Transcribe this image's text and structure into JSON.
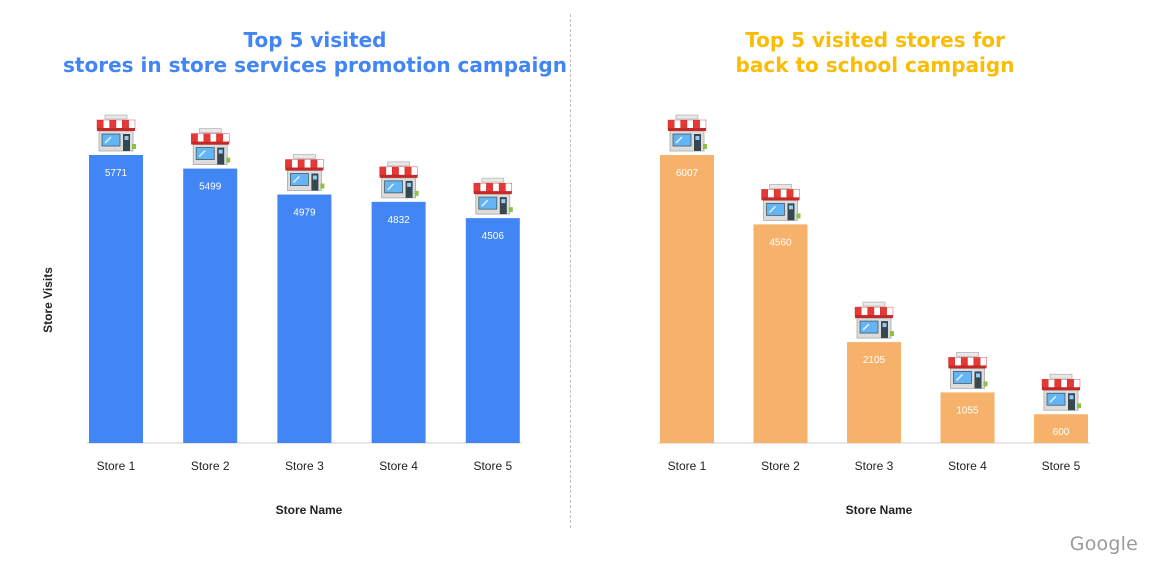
{
  "colors": {
    "left_bar": "#4285f4",
    "right_bar": "#f6b26b",
    "left_title": "#4285f4",
    "right_title": "#fbbc04"
  },
  "chart_data": [
    {
      "type": "bar",
      "title_lines": [
        "Top 5 visited",
        "stores in store services promotion campaign"
      ],
      "xlabel": "Store Name",
      "ylabel": "Store Visits",
      "categories": [
        "Store 1",
        "Store 2",
        "Store 3",
        "Store 4",
        "Store 5"
      ],
      "values": [
        5771,
        5499,
        4979,
        4832,
        4506
      ],
      "ylim": [
        0,
        6500
      ],
      "icon": "store-icon"
    },
    {
      "type": "bar",
      "title_lines": [
        "Top 5 visited stores for",
        "back to school campaign"
      ],
      "xlabel": "Store Name",
      "categories": [
        "Store 1",
        "Store 2",
        "Store 3",
        "Store 4",
        "Store 5"
      ],
      "values": [
        6007,
        4560,
        2105,
        1055,
        600
      ],
      "ylim": [
        0,
        6000
      ],
      "icon": "store-icon"
    }
  ],
  "footer": {
    "logo": "Google"
  }
}
